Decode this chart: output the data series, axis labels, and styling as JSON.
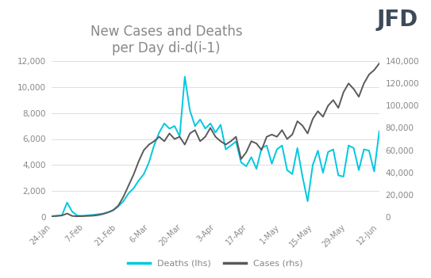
{
  "title": "New Cases and Deaths\nper Day di-d(i-1)",
  "title_fontsize": 12,
  "bg_color": "#ffffff",
  "deaths_color": "#00c8e0",
  "cases_color": "#5a5a5a",
  "deaths_label": "Deaths (lhs)",
  "cases_label": "Cases (rhs)",
  "lhs_ylim": [
    0,
    12000
  ],
  "rhs_ylim": [
    0,
    140000
  ],
  "lhs_yticks": [
    0,
    2000,
    4000,
    6000,
    8000,
    10000,
    12000
  ],
  "rhs_yticks": [
    0,
    20000,
    40000,
    60000,
    80000,
    100000,
    120000,
    140000
  ],
  "xtick_labels": [
    "24-Jan",
    "7-Feb",
    "21-Feb",
    "6-Mar",
    "20-Mar",
    "3-Apr",
    "17-Apr",
    "1-May",
    "15-May",
    "29-May",
    "12-Jun"
  ],
  "deaths": [
    50,
    80,
    120,
    1100,
    400,
    100,
    80,
    120,
    150,
    200,
    250,
    350,
    500,
    800,
    1200,
    1800,
    2200,
    2800,
    3300,
    4200,
    5500,
    6500,
    7200,
    6800,
    7000,
    6200,
    10800,
    8200,
    7000,
    7500,
    6800,
    7200,
    6500,
    7100,
    5200,
    5500,
    5800,
    4200,
    3900,
    4600,
    3700,
    5300,
    5500,
    4100,
    5200,
    5500,
    3600,
    3300,
    5300,
    3100,
    1200,
    4000,
    5100,
    3400,
    5000,
    5200,
    3200,
    3100,
    5500,
    5300,
    3600,
    5200,
    5100,
    3500,
    6600
  ],
  "cases": [
    500,
    800,
    1200,
    3000,
    800,
    500,
    600,
    800,
    1000,
    1500,
    2500,
    4000,
    6000,
    10000,
    18000,
    28000,
    38000,
    50000,
    60000,
    65000,
    68000,
    72000,
    68000,
    75000,
    70000,
    72000,
    65000,
    75000,
    78000,
    68000,
    72000,
    80000,
    72000,
    68000,
    65000,
    68000,
    72000,
    52000,
    58000,
    68000,
    66000,
    60000,
    72000,
    74000,
    72000,
    78000,
    70000,
    74000,
    86000,
    82000,
    75000,
    88000,
    95000,
    90000,
    100000,
    105000,
    98000,
    112000,
    120000,
    115000,
    108000,
    120000,
    128000,
    132000,
    138000
  ],
  "jfd_color": "#3d4a5a"
}
